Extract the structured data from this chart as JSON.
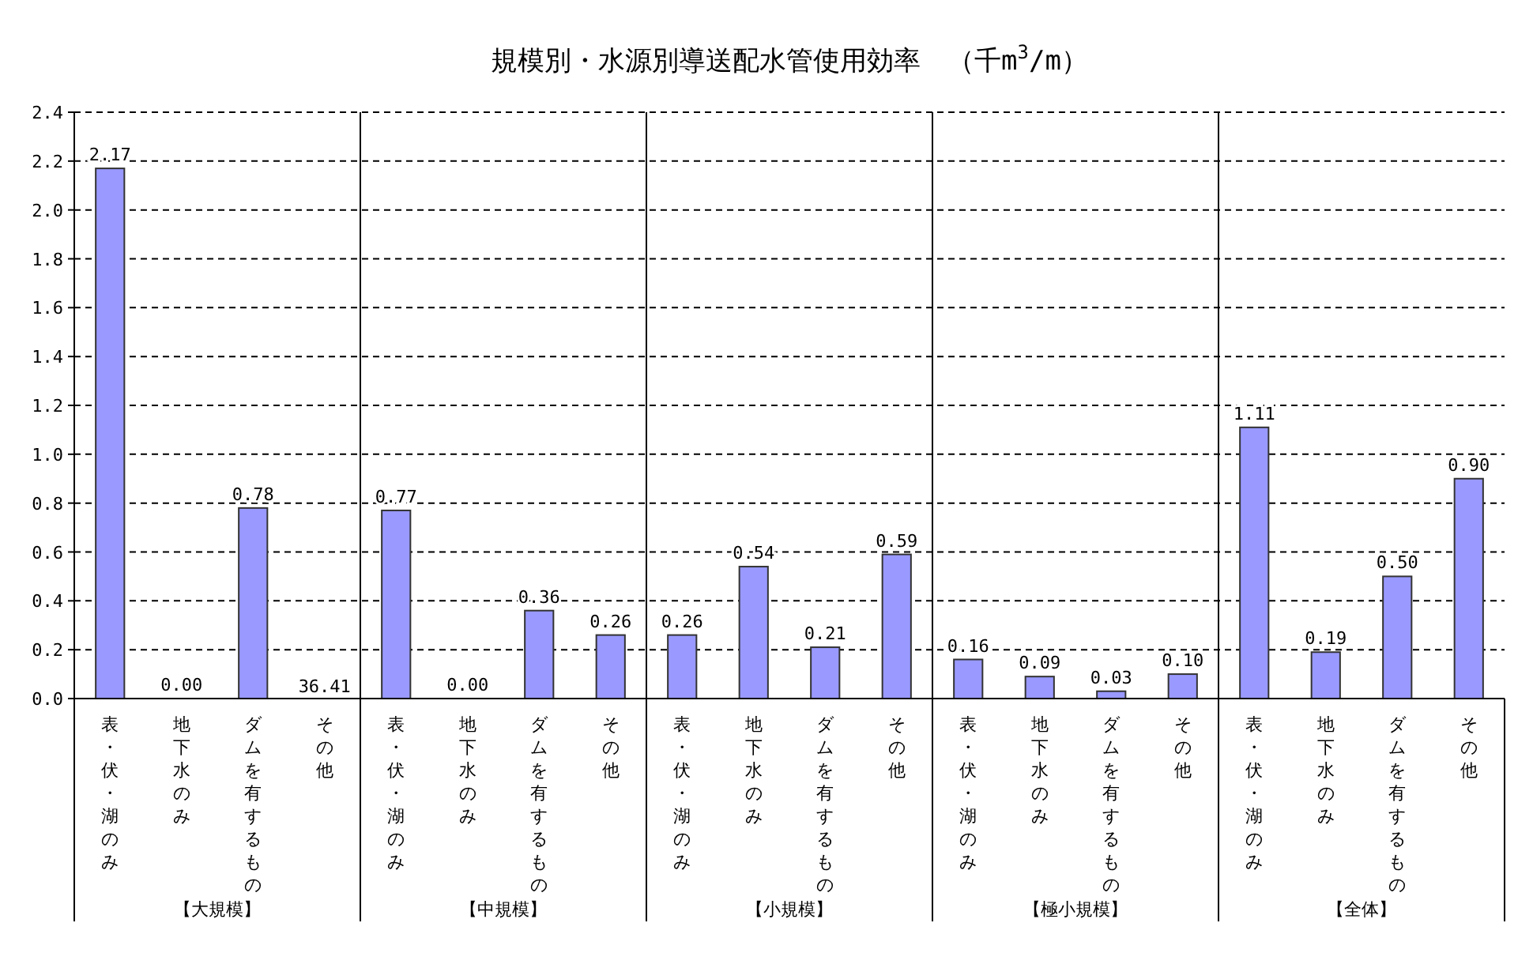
{
  "chart_data": {
    "type": "bar",
    "title": "規模別・水源別導送配水管使用効率　（千m$^{3}$/m）",
    "categories": [
      "表・伏・湖のみ",
      "地下水のみ",
      "ダムを有するもの",
      "その他",
      "表・伏・湖のみ",
      "地下水のみ",
      "ダムを有するもの",
      "その他",
      "表・伏・湖のみ",
      "地下水のみ",
      "ダムを有するもの",
      "その他",
      "表・伏・湖のみ",
      "地下水のみ",
      "ダムを有するもの",
      "その他",
      "表・伏・湖のみ",
      "地下水のみ",
      "ダムを有するもの",
      "その他"
    ],
    "values": [
      2.17,
      0.0,
      0.78,
      null,
      0.77,
      0.0,
      0.36,
      0.26,
      0.26,
      0.54,
      0.21,
      0.59,
      0.16,
      0.09,
      0.03,
      0.1,
      1.11,
      0.19,
      0.5,
      0.9
    ],
    "value_labels": [
      "2.17",
      "0.00",
      "0.78",
      "36.41",
      "0.77",
      "0.00",
      "0.36",
      "0.26",
      "0.26",
      "0.54",
      "0.21",
      "0.59",
      "0.16",
      "0.09",
      "0.03",
      "0.10",
      "1.11",
      "0.19",
      "0.50",
      "0.90"
    ],
    "color": "#9999ff",
    "annotations": [
      "【大規模】",
      "【中規模】",
      "【小規模】",
      "【極小規模】",
      "【全体】"
    ],
    "ylim": [
      0,
      2.4
    ],
    "yticks": [
      {
        "value": 0,
        "label": "0.0"
      },
      {
        "value": 0.2,
        "label": "0.2"
      },
      {
        "value": 0.4,
        "label": "0.4"
      },
      {
        "value": 0.6,
        "label": "0.6"
      },
      {
        "value": 0.8,
        "label": "0.8"
      },
      {
        "value": 1.0,
        "label": "1.0"
      },
      {
        "value": 1.2,
        "label": "1.2"
      },
      {
        "value": 1.4,
        "label": "1.4"
      },
      {
        "value": 1.6,
        "label": "1.6"
      },
      {
        "value": 1.8,
        "label": "1.8"
      },
      {
        "value": 2.0,
        "label": "2.0"
      },
      {
        "value": 2.2,
        "label": "2.2"
      },
      {
        "value": 2.4,
        "label": "2.4"
      }
    ],
    "grid": "y"
  }
}
